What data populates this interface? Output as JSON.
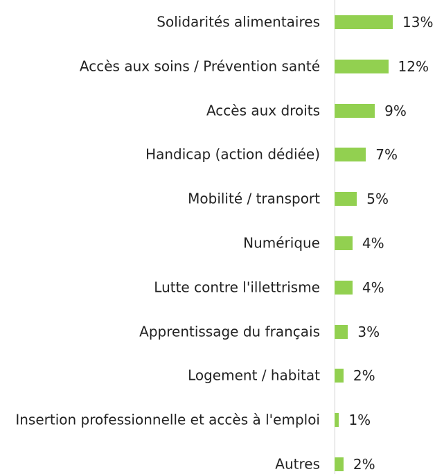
{
  "chart_data": {
    "type": "barh",
    "categories": [
      "Solidarités alimentaires",
      "Accès aux soins / Prévention santé",
      "Accès aux droits",
      "Handicap (action dédiée)",
      "Mobilité / transport",
      "Numérique",
      "Lutte contre l'illettrisme",
      "Apprentissage du français",
      "Logement / habitat",
      "Insertion professionnelle et accès à l'emploi",
      "Autres"
    ],
    "values": [
      13,
      12,
      9,
      7,
      5,
      4,
      4,
      3,
      2,
      1,
      2
    ],
    "value_labels": [
      "13%",
      "12%",
      "9%",
      "7%",
      "5%",
      "4%",
      "4%",
      "3%",
      "2%",
      "1%",
      "2%"
    ],
    "color": "#92d050"
  }
}
